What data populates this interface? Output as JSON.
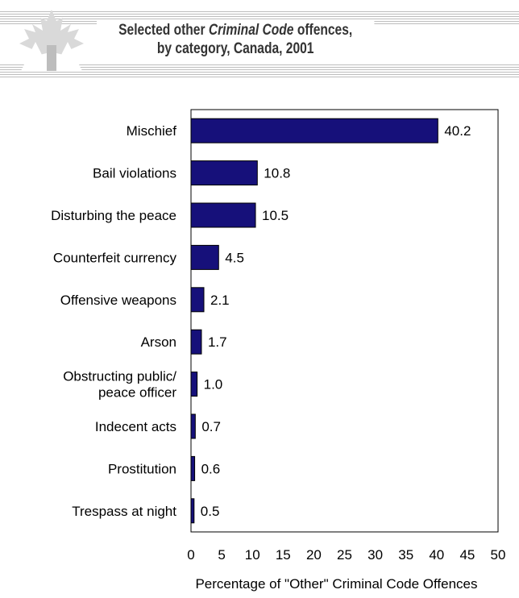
{
  "header": {
    "title_line1_pre": "Selected other ",
    "title_line1_em": "Criminal Code",
    "title_line1_post": " offences,",
    "title_line2": "by category, Canada, 2001"
  },
  "colors": {
    "bar": "#16107a",
    "bar_stroke": "#000000",
    "header_text": "#333333"
  },
  "chart_data": {
    "type": "bar",
    "orientation": "horizontal",
    "categories": [
      [
        "Mischief"
      ],
      [
        "Bail violations"
      ],
      [
        "Disturbing the peace"
      ],
      [
        "Counterfeit currency"
      ],
      [
        "Offensive weapons"
      ],
      [
        "Arson"
      ],
      [
        "Obstructing public/",
        "peace officer"
      ],
      [
        "Indecent acts"
      ],
      [
        "Prostitution"
      ],
      [
        "Trespass at night"
      ]
    ],
    "values": [
      40.2,
      10.8,
      10.5,
      4.5,
      2.1,
      1.7,
      1.0,
      0.7,
      0.6,
      0.5
    ],
    "value_labels": [
      "40.2",
      "10.8",
      "10.5",
      "4.5",
      "2.1",
      "1.7",
      "1.0",
      "0.7",
      "0.6",
      "0.5"
    ],
    "xlim": [
      0,
      50
    ],
    "xticks": [
      0,
      5,
      10,
      15,
      20,
      25,
      30,
      35,
      40,
      45,
      50
    ],
    "xlabel": "Percentage of \"Other\" Criminal Code Offences",
    "grid": false
  }
}
